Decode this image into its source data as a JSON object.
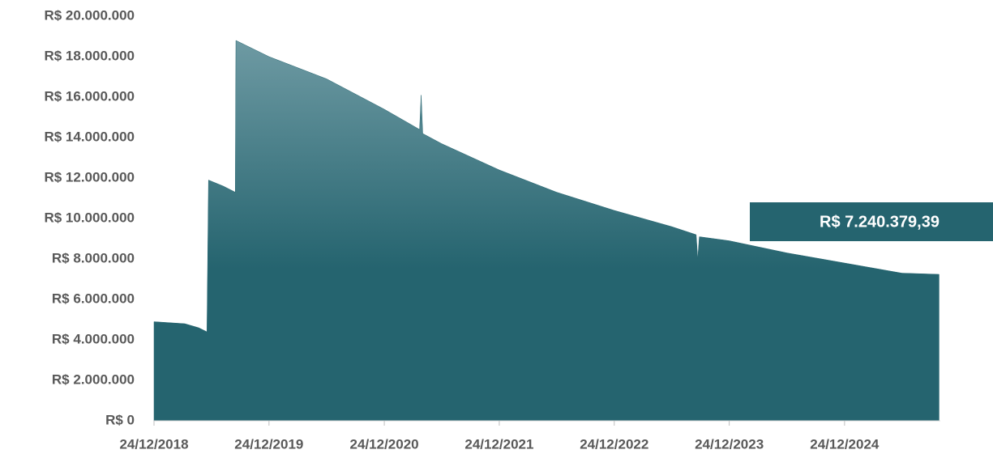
{
  "chart_data": {
    "type": "area",
    "x": [
      "2018-12-24",
      "2019-04-01",
      "2019-05-15",
      "2019-06-10",
      "2019-06-15",
      "2019-08-01",
      "2019-09-08",
      "2019-09-10",
      "2019-12-24",
      "2020-06-24",
      "2020-12-24",
      "2021-04-15",
      "2021-04-20",
      "2021-04-25",
      "2021-06-24",
      "2021-12-24",
      "2022-06-24",
      "2022-12-24",
      "2023-06-24",
      "2023-09-10",
      "2023-09-15",
      "2023-09-20",
      "2023-12-24",
      "2024-06-24",
      "2024-12-24",
      "2025-06-24",
      "2025-10-20"
    ],
    "values": [
      4900000,
      4800000,
      4600000,
      4400000,
      11900000,
      11600000,
      11300000,
      18800000,
      18000000,
      16900000,
      15400000,
      14400000,
      16100000,
      14200000,
      13700000,
      12400000,
      11300000,
      10400000,
      9600000,
      9200000,
      8000000,
      9100000,
      8900000,
      8300000,
      7800000,
      7300000,
      7240379.39
    ],
    "color": "#25646f",
    "annotation": "R$ 7.240.379,39",
    "xlim": [
      "2018-12-24",
      "2025-10-24"
    ],
    "xticks": [
      {
        "value": "2018-12-24",
        "label": "24/12/2018"
      },
      {
        "value": "2019-12-24",
        "label": "24/12/2019"
      },
      {
        "value": "2020-12-24",
        "label": "24/12/2020"
      },
      {
        "value": "2021-12-24",
        "label": "24/12/2021"
      },
      {
        "value": "2022-12-24",
        "label": "24/12/2022"
      },
      {
        "value": "2023-12-24",
        "label": "24/12/2023"
      },
      {
        "value": "2024-12-24",
        "label": "24/12/2024"
      }
    ],
    "ylim": [
      0,
      20000000
    ],
    "yticks": [
      {
        "value": 0,
        "label": "R$ 0"
      },
      {
        "value": 2000000,
        "label": "R$ 2.000.000"
      },
      {
        "value": 4000000,
        "label": "R$ 4.000.000"
      },
      {
        "value": 6000000,
        "label": "R$ 6.000.000"
      },
      {
        "value": 8000000,
        "label": "R$ 8.000.000"
      },
      {
        "value": 10000000,
        "label": "R$ 10.000.000"
      },
      {
        "value": 12000000,
        "label": "R$ 12.000.000"
      },
      {
        "value": 14000000,
        "label": "R$ 14.000.000"
      },
      {
        "value": 16000000,
        "label": "R$ 16.000.000"
      },
      {
        "value": 18000000,
        "label": "R$ 18.000.000"
      },
      {
        "value": 20000000,
        "label": "R$ 20.000.000"
      }
    ]
  }
}
